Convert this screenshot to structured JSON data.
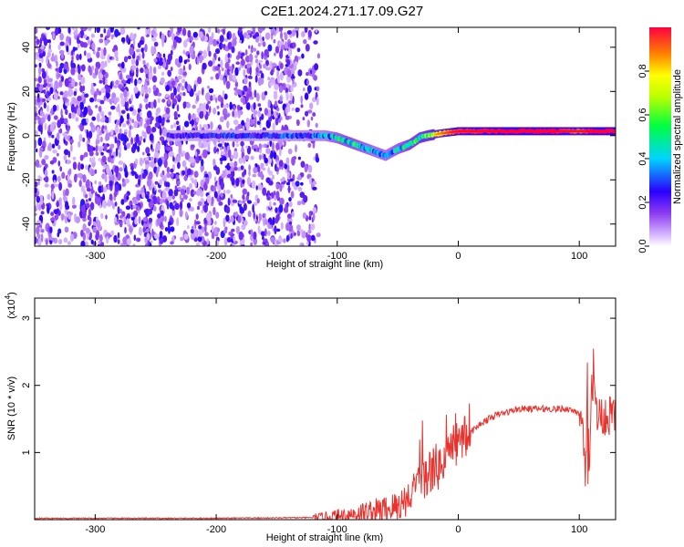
{
  "title": "C2E1.2024.271.17.09.G27",
  "colorbar": {
    "label": "Normalized spectral amplitude",
    "ticks": [
      "0.0",
      "0.2",
      "0.4",
      "0.6",
      "0.8"
    ],
    "tick_values": [
      0.0,
      0.2,
      0.4,
      0.6,
      0.8
    ],
    "range": [
      0,
      1
    ]
  },
  "chart_data": [
    {
      "type": "heatmap",
      "xlabel": "Height of straight line (km)",
      "ylabel": "Frequency (Hz)",
      "xlim": [
        -350,
        130
      ],
      "ylim": [
        -50,
        49
      ],
      "xticks": [
        -300,
        -200,
        -100,
        0,
        100
      ],
      "xtick_labels": [
        "-300",
        "-200",
        "-100",
        "0",
        "100"
      ],
      "yticks": [
        -40,
        -20,
        0,
        20,
        40
      ],
      "ytick_labels": [
        "-40",
        "-20",
        "0",
        "20",
        "40"
      ],
      "noise_region_x": [
        -350,
        -115
      ],
      "signal_track": {
        "x": [
          -240,
          -200,
          -160,
          -130,
          -110,
          -100,
          -90,
          -80,
          -70,
          -60,
          -50,
          -40,
          -32,
          -25,
          -15,
          0,
          40,
          80,
          100,
          110,
          130
        ],
        "freq": [
          0,
          0,
          0,
          0,
          0,
          -1,
          -3,
          -5,
          -7,
          -9,
          -6,
          -4,
          -1,
          0,
          1,
          2,
          2,
          2,
          2,
          2,
          2
        ],
        "amplitude": [
          0.25,
          0.3,
          0.3,
          0.35,
          0.4,
          0.5,
          0.55,
          0.5,
          0.45,
          0.45,
          0.5,
          0.6,
          0.65,
          0.7,
          0.8,
          0.95,
          1.0,
          1.0,
          0.9,
          1.0,
          1.0
        ]
      }
    },
    {
      "type": "line",
      "xlabel": "Height of straight line (km)",
      "ylabel": "SNR (10 * v/v)",
      "multiplier_label": "(x10",
      "multiplier_exp": "4",
      "xlim": [
        -350,
        130
      ],
      "ylim": [
        0,
        3.3
      ],
      "xticks": [
        -300,
        -200,
        -100,
        0,
        100
      ],
      "xtick_labels": [
        "-300",
        "-200",
        "-100",
        "0",
        "100"
      ],
      "yticks": [
        1,
        2,
        3
      ],
      "ytick_labels": [
        "1",
        "2",
        "3"
      ],
      "color": "#e8332e",
      "series": [
        {
          "x": [
            -350,
            -300,
            -200,
            -120,
            -100,
            -80,
            -60,
            -50,
            -40,
            -30,
            -20,
            -15,
            -10,
            0,
            10,
            20,
            30,
            40,
            50,
            60,
            70,
            80,
            90,
            100,
            103,
            105,
            107,
            108,
            110,
            115,
            120,
            130
          ],
          "values": [
            0.02,
            0.02,
            0.02,
            0.03,
            0.05,
            0.1,
            0.15,
            0.2,
            0.35,
            0.55,
            0.8,
            0.75,
            1.0,
            1.15,
            1.3,
            1.45,
            1.55,
            1.6,
            1.65,
            1.65,
            1.65,
            1.65,
            1.65,
            1.6,
            1.2,
            0.5,
            2.4,
            0.4,
            2.2,
            1.55,
            1.55,
            1.55
          ]
        }
      ]
    }
  ]
}
